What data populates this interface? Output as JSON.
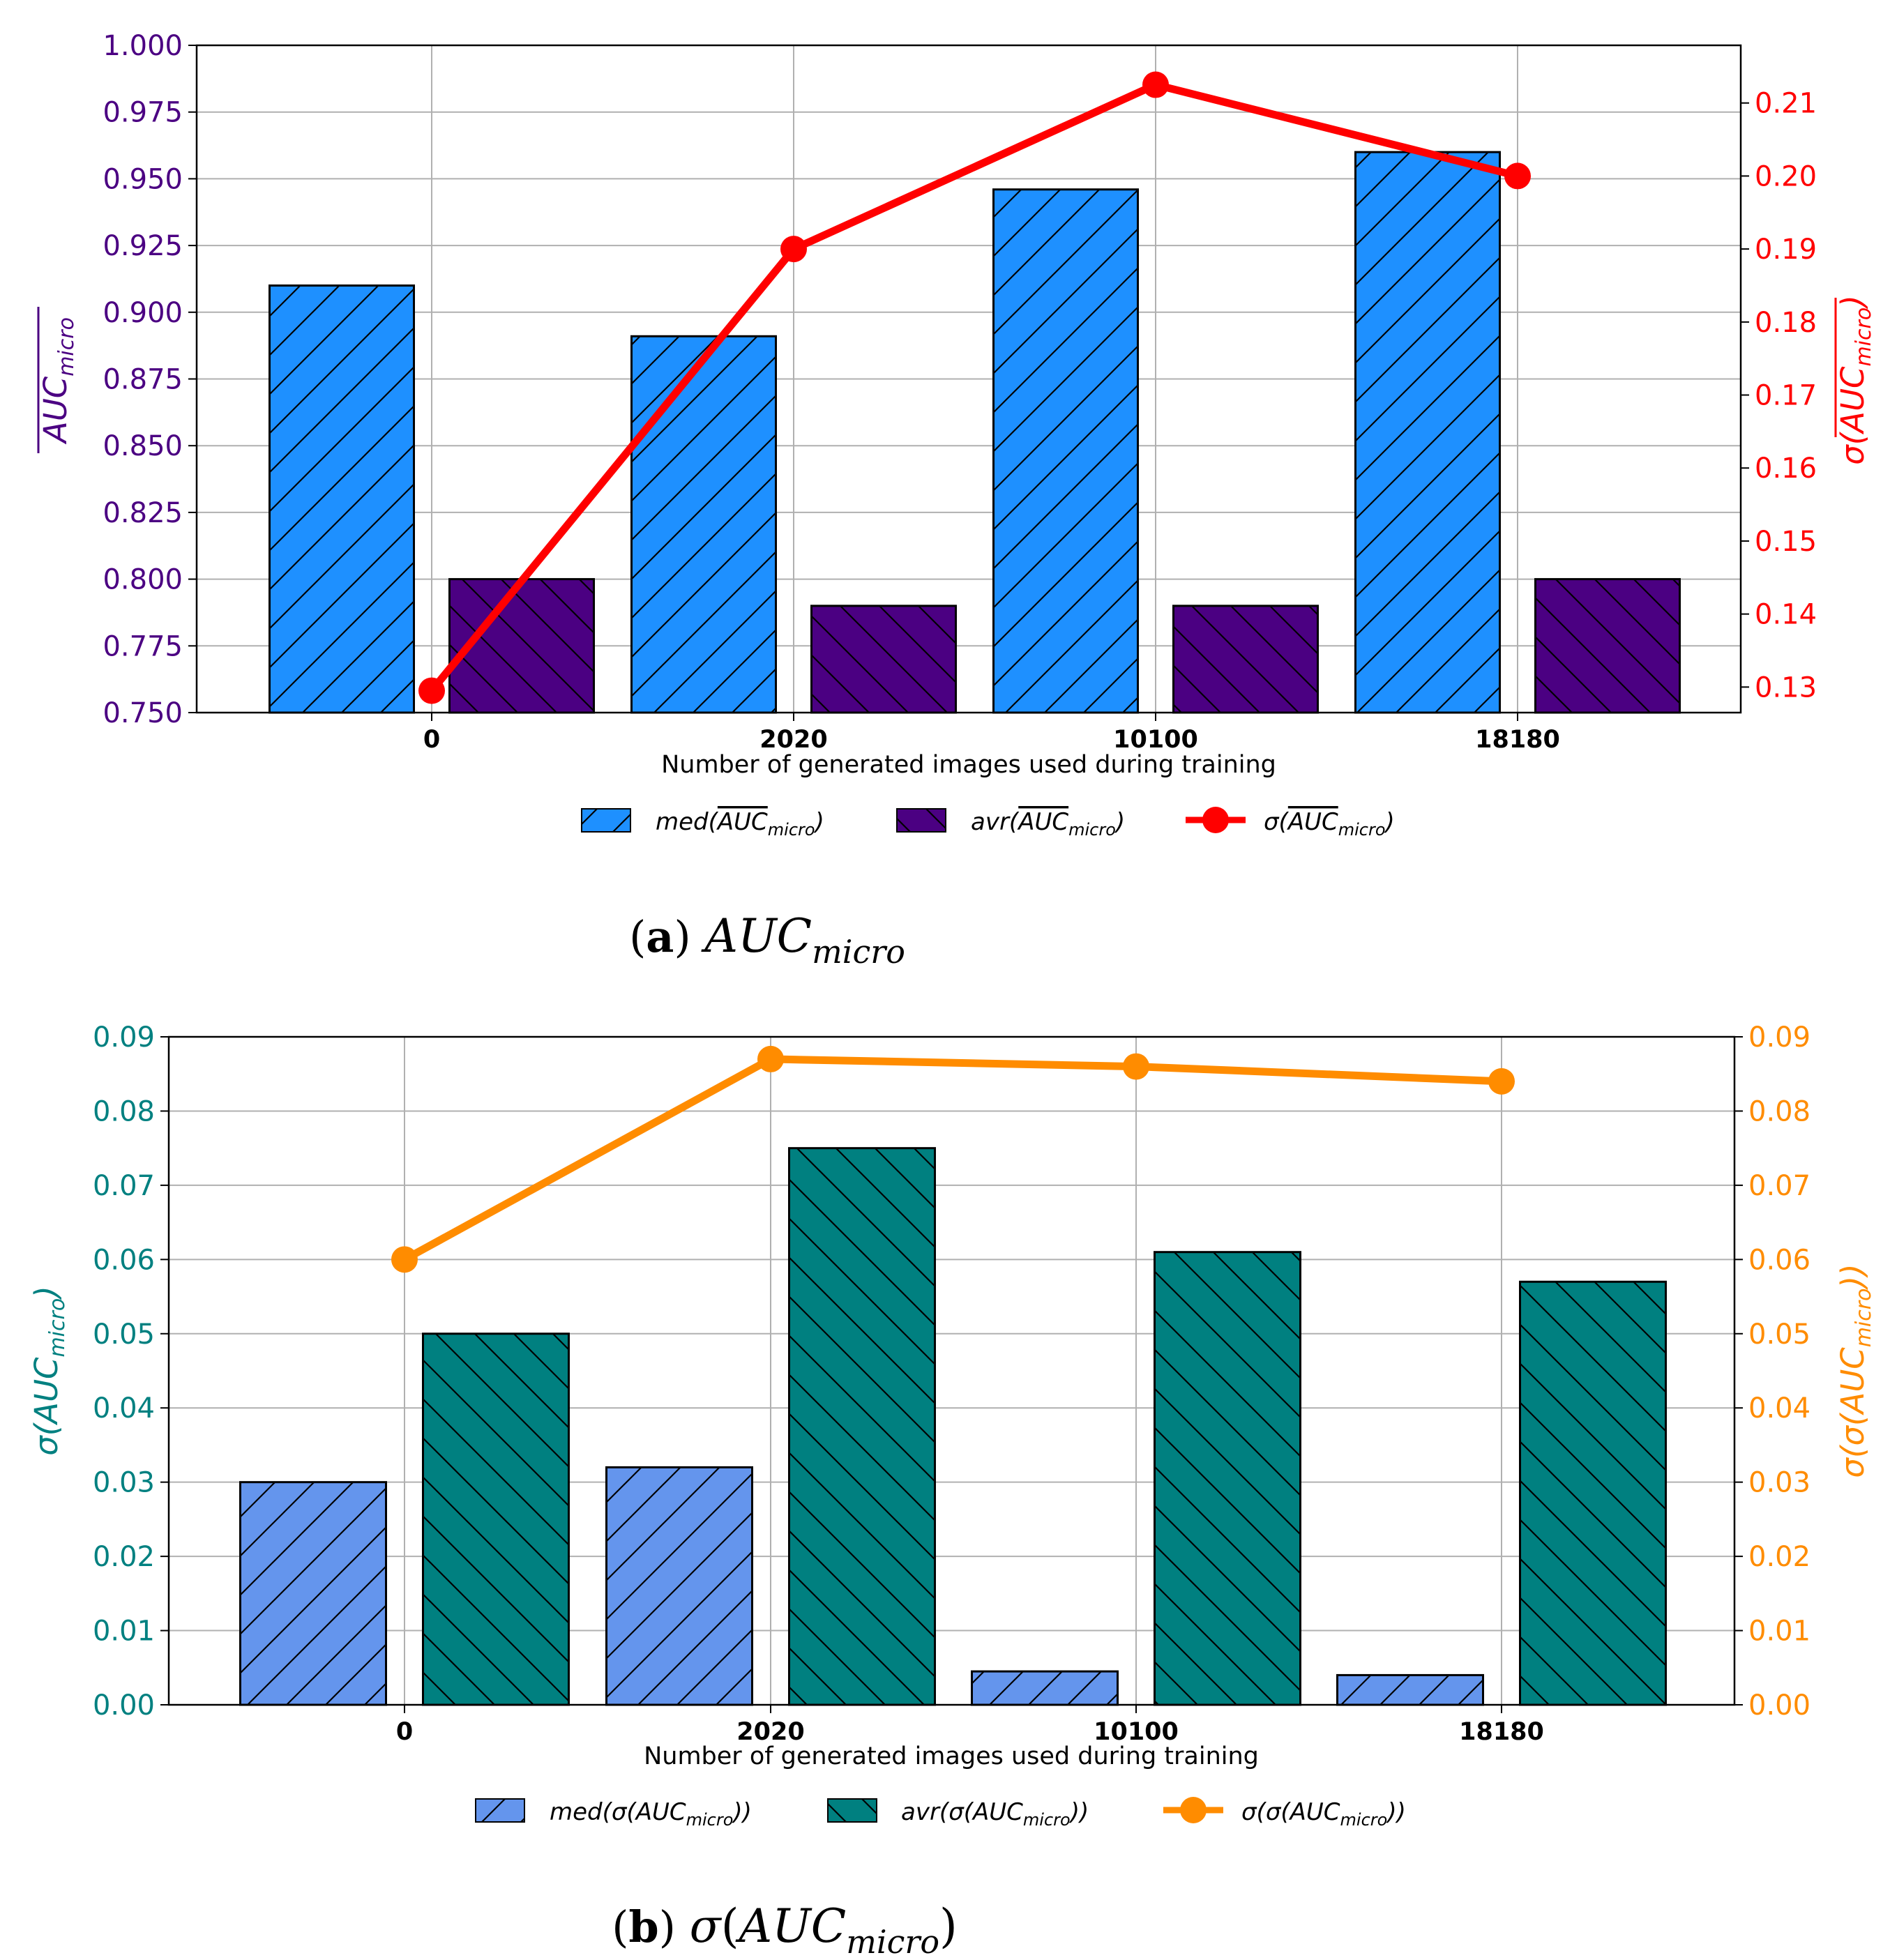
{
  "chart_data": [
    {
      "type": "bar",
      "caption": {
        "letter": "a",
        "text": "AUC_micro"
      },
      "xlabel": "Number of generated images used during training",
      "categories": [
        "0",
        "2020",
        "10100",
        "18180"
      ],
      "ylabel_left": "AUC_micro (overline)",
      "ylabel_right": "σ(AUC_micro (overline))",
      "ylim_left": [
        0.75,
        1.0
      ],
      "yticks_left": [
        "0.750",
        "0.775",
        "0.800",
        "0.825",
        "0.850",
        "0.875",
        "0.900",
        "0.925",
        "0.950",
        "0.975",
        "1.000"
      ],
      "ylim_right": [
        0.1265,
        0.2179
      ],
      "yticks_right": [
        "0.13",
        "0.14",
        "0.15",
        "0.16",
        "0.17",
        "0.18",
        "0.19",
        "0.20",
        "0.21"
      ],
      "grid": true,
      "series": [
        {
          "name": "med(AUC_micro)",
          "kind": "bar",
          "axis": "left",
          "color": "#1e90ff",
          "hatch": "/",
          "values": [
            0.91,
            0.891,
            0.946,
            0.96
          ]
        },
        {
          "name": "avr(AUC_micro)",
          "kind": "bar",
          "axis": "left",
          "color": "#4b0082",
          "hatch": "\\",
          "values": [
            0.8,
            0.79,
            0.79,
            0.8
          ]
        },
        {
          "name": "σ(AUC_micro)",
          "kind": "line",
          "axis": "right",
          "color": "#ff0000",
          "values": [
            0.1295,
            0.19,
            0.2125,
            0.2
          ]
        }
      ],
      "colors": {
        "left_axis": "#4b0082",
        "right_axis": "#ff0000"
      },
      "legend_placement": "bottom-center"
    },
    {
      "type": "bar",
      "caption": {
        "letter": "b",
        "text": "σ(AUC_micro)"
      },
      "xlabel": "Number of generated images used during training",
      "categories": [
        "0",
        "2020",
        "10100",
        "18180"
      ],
      "ylabel_left": "σ(AUC_micro)",
      "ylabel_right": "σ(σ(AUC_micro))",
      "ylim_left": [
        0.0,
        0.09
      ],
      "yticks_left": [
        "0.00",
        "0.01",
        "0.02",
        "0.03",
        "0.04",
        "0.05",
        "0.06",
        "0.07",
        "0.08",
        "0.09"
      ],
      "ylim_right": [
        0.0,
        0.09
      ],
      "yticks_right": [
        "0.00",
        "0.01",
        "0.02",
        "0.03",
        "0.04",
        "0.05",
        "0.06",
        "0.07",
        "0.08",
        "0.09"
      ],
      "grid": true,
      "series": [
        {
          "name": "med(σ(AUC_micro))",
          "kind": "bar",
          "axis": "left",
          "color": "#6495ed",
          "hatch": "/",
          "values": [
            0.03,
            0.032,
            0.0045,
            0.004
          ]
        },
        {
          "name": "avr(σ(AUC_micro))",
          "kind": "bar",
          "axis": "left",
          "color": "#008080",
          "hatch": "\\",
          "values": [
            0.05,
            0.075,
            0.061,
            0.057
          ]
        },
        {
          "name": "σ(σ(AUC_micro))",
          "kind": "line",
          "axis": "right",
          "color": "#ff8c00",
          "values": [
            0.06,
            0.087,
            0.086,
            0.084
          ]
        }
      ],
      "colors": {
        "left_axis": "#008080",
        "right_axis": "#ff8c00"
      },
      "legend_placement": "bottom-center"
    }
  ]
}
